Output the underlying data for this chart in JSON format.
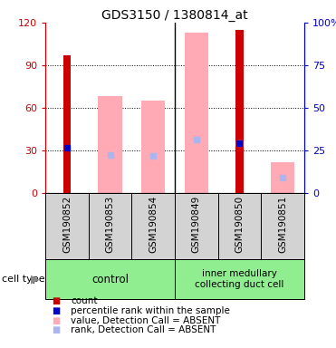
{
  "title": "GDS3150 / 1380814_at",
  "samples": [
    "GSM190852",
    "GSM190853",
    "GSM190854",
    "GSM190849",
    "GSM190850",
    "GSM190851"
  ],
  "group_labels": [
    "control",
    "inner medullary\ncollecting duct cell"
  ],
  "red_bars": [
    97,
    0,
    0,
    0,
    115,
    0
  ],
  "pink_bars": [
    0,
    68,
    65,
    113,
    0,
    22
  ],
  "blue_squares": [
    32,
    0,
    0,
    0,
    35,
    0
  ],
  "lightblue_squares": [
    0,
    27,
    26,
    38,
    35,
    11
  ],
  "ylim_left": [
    0,
    120
  ],
  "ylim_right": [
    0,
    100
  ],
  "left_ticks": [
    0,
    30,
    60,
    90,
    120
  ],
  "right_ticks": [
    0,
    25,
    50,
    75,
    100
  ],
  "right_tick_labels": [
    "0",
    "25",
    "50",
    "75",
    "100%"
  ],
  "left_color": "#cc0000",
  "right_color": "#0000cc",
  "pink_color": "#ffaab4",
  "lightblue_color": "#aab4ee",
  "blue_color": "#0000cc",
  "red_color": "#cc0000",
  "group_color": "#90ee90",
  "sample_bg_color": "#d3d3d3",
  "title_fontsize": 10,
  "tick_fontsize": 8,
  "sample_fontsize": 7.5,
  "legend_fontsize": 7.5
}
